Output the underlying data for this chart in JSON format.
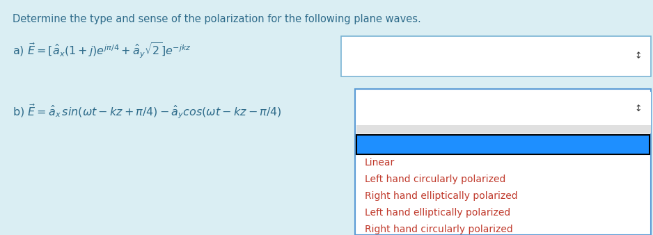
{
  "bg_color": "#daeef3",
  "title_text": "Determine the type and sense of the polarization for the following plane waves.",
  "title_color": "#2e6b8a",
  "title_fontsize": 10.5,
  "eq_a": "a) $\\vec{E} = [\\hat{a}_x(1+j)e^{j\\pi/4} + \\hat{a}_y\\sqrt{2}]e^{-jkz}$",
  "eq_b": "b) $\\vec{E} = \\hat{a}_x\\,sin(\\omega t - kz + \\pi/4) - \\hat{a}_y cos(\\omega t - kz - \\pi/4)$",
  "eq_color": "#2e6b8a",
  "eq_fontsize": 11.5,
  "dropdown_bg": "#ffffff",
  "dropdown_border": "#7ab4d4",
  "dropdown_b_border": "#5b9bd5",
  "blue_bar_color": "#1e8fff",
  "blue_bar_border": "#000000",
  "list_items": [
    "Linear",
    "Left hand circularly polarized",
    "Right hand elliptically polarized",
    "Left hand elliptically polarized",
    "Right hand circularly polarized"
  ],
  "list_color": "#c0392b",
  "list_fontsize": 10,
  "arrow_color": "#333333"
}
